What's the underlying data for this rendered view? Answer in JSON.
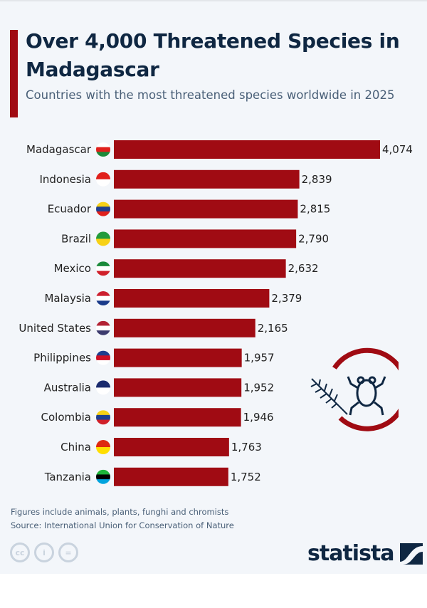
{
  "header": {
    "title": "Over 4,000 Threatened Species in Madagascar",
    "subtitle": "Countries with the most threatened species worldwide in 2025"
  },
  "chart_data": {
    "type": "bar",
    "orientation": "horizontal",
    "title": "Over 4,000 Threatened Species in Madagascar",
    "categories": [
      "Madagascar",
      "Indonesia",
      "Ecuador",
      "Brazil",
      "Mexico",
      "Malaysia",
      "United States",
      "Philippines",
      "Australia",
      "Colombia",
      "China",
      "Tanzania"
    ],
    "values": [
      4074,
      2839,
      2815,
      2790,
      2632,
      2379,
      2165,
      1957,
      1952,
      1946,
      1763,
      1752
    ],
    "value_labels": [
      "4,074",
      "2,839",
      "2,815",
      "2,790",
      "2,632",
      "2,379",
      "2,165",
      "1,957",
      "1,952",
      "1,946",
      "1,763",
      "1,752"
    ],
    "xlim": [
      0,
      4074
    ],
    "bar_color": "#a00b13",
    "xlabel": "",
    "ylabel": ""
  },
  "footer": {
    "note": "Figures include animals, plants, funghi and chromists",
    "source": "Source: International Union for Conservation of Nature",
    "cc": [
      "cc",
      "i",
      "="
    ],
    "brand": "statista"
  },
  "colors": {
    "accent": "#a00b13",
    "title": "#0f2742"
  }
}
